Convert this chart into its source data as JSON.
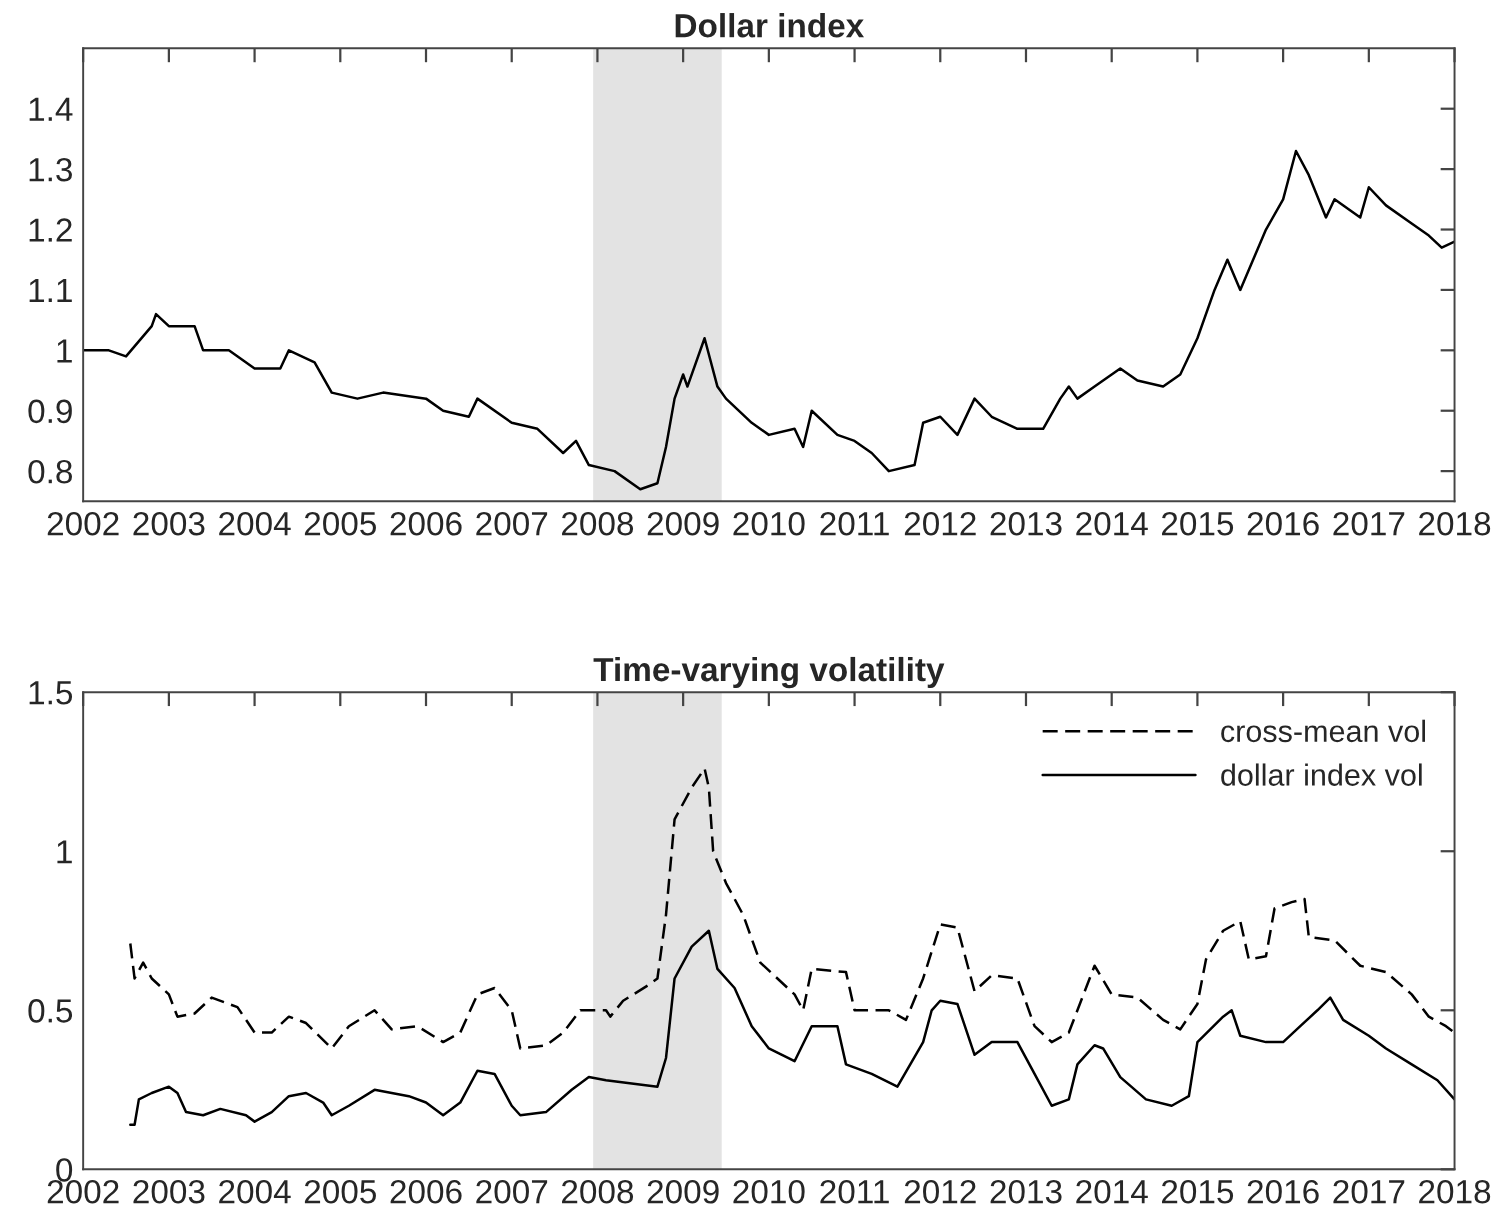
{
  "chart_data": [
    {
      "type": "line",
      "title": "Dollar index",
      "xlim": [
        2002,
        2018
      ],
      "xticks": [
        2002,
        2003,
        2004,
        2005,
        2006,
        2007,
        2008,
        2009,
        2010,
        2011,
        2012,
        2013,
        2014,
        2015,
        2016,
        2017,
        2018
      ],
      "ylim": [
        0.75,
        1.5
      ],
      "yticks": [
        0.8,
        0.9,
        1,
        1.1,
        1.2,
        1.3,
        1.4
      ],
      "grid": false,
      "legend": false,
      "bands": [
        {
          "axis": "x",
          "from": 2007.95,
          "to": 2009.45,
          "color": "#e3e3e3"
        }
      ],
      "series": [
        {
          "color": "#000000",
          "line_style": "solid",
          "x": [
            2002.0,
            2002.3,
            2002.5,
            2002.8,
            2002.85,
            2003.0,
            2003.3,
            2003.4,
            2003.7,
            2004.0,
            2004.3,
            2004.4,
            2004.7,
            2004.9,
            2005.2,
            2005.5,
            2006.0,
            2006.2,
            2006.5,
            2006.6,
            2007.0,
            2007.3,
            2007.6,
            2007.75,
            2007.9,
            2008.2,
            2008.5,
            2008.7,
            2008.8,
            2008.9,
            2009.0,
            2009.05,
            2009.25,
            2009.4,
            2009.5,
            2009.8,
            2010.0,
            2010.3,
            2010.4,
            2010.5,
            2010.8,
            2011.0,
            2011.2,
            2011.4,
            2011.7,
            2011.8,
            2012.0,
            2012.2,
            2012.4,
            2012.6,
            2012.9,
            2013.2,
            2013.4,
            2013.5,
            2013.6,
            2013.8,
            2014.1,
            2014.3,
            2014.6,
            2014.8,
            2015.0,
            2015.2,
            2015.35,
            2015.5,
            2015.8,
            2016.0,
            2016.15,
            2016.3,
            2016.5,
            2016.6,
            2016.9,
            2017.0,
            2017.2,
            2017.5,
            2017.7,
            2017.85,
            2018.0
          ],
          "values": [
            1.0,
            1.0,
            0.99,
            1.04,
            1.06,
            1.04,
            1.04,
            1.0,
            1.0,
            0.97,
            0.97,
            1.0,
            0.98,
            0.93,
            0.92,
            0.93,
            0.92,
            0.9,
            0.89,
            0.92,
            0.88,
            0.87,
            0.83,
            0.85,
            0.81,
            0.8,
            0.77,
            0.78,
            0.84,
            0.92,
            0.96,
            0.94,
            1.02,
            0.94,
            0.92,
            0.88,
            0.86,
            0.87,
            0.84,
            0.9,
            0.86,
            0.85,
            0.83,
            0.8,
            0.81,
            0.88,
            0.89,
            0.86,
            0.92,
            0.89,
            0.87,
            0.87,
            0.92,
            0.94,
            0.92,
            0.94,
            0.97,
            0.95,
            0.94,
            0.96,
            1.02,
            1.1,
            1.15,
            1.1,
            1.2,
            1.25,
            1.33,
            1.29,
            1.22,
            1.25,
            1.22,
            1.27,
            1.24,
            1.21,
            1.19,
            1.17,
            1.18
          ]
        }
      ]
    },
    {
      "type": "line",
      "title": "Time-varying volatility",
      "xlim": [
        2002,
        2018
      ],
      "xticks": [
        2002,
        2003,
        2004,
        2005,
        2006,
        2007,
        2008,
        2009,
        2010,
        2011,
        2012,
        2013,
        2014,
        2015,
        2016,
        2017,
        2018
      ],
      "ylim": [
        0,
        1.5
      ],
      "yticks": [
        0,
        0.5,
        1,
        1.5
      ],
      "grid": false,
      "legend": "top right",
      "bands": [
        {
          "axis": "x",
          "from": 2007.95,
          "to": 2009.45,
          "color": "#e3e3e3"
        }
      ],
      "series": [
        {
          "name": "cross-mean vol",
          "color": "#000000",
          "line_style": "dashed",
          "x": [
            2002.55,
            2002.6,
            2002.7,
            2002.8,
            2003.0,
            2003.1,
            2003.3,
            2003.5,
            2003.8,
            2004.0,
            2004.2,
            2004.4,
            2004.6,
            2004.9,
            2005.1,
            2005.4,
            2005.6,
            2005.9,
            2006.2,
            2006.4,
            2006.6,
            2006.8,
            2007.0,
            2007.1,
            2007.4,
            2007.6,
            2007.8,
            2008.1,
            2008.15,
            2008.3,
            2008.6,
            2008.7,
            2008.8,
            2008.9,
            2009.1,
            2009.25,
            2009.3,
            2009.35,
            2009.5,
            2009.7,
            2009.9,
            2010.3,
            2010.4,
            2010.5,
            2010.9,
            2011.0,
            2011.4,
            2011.6,
            2011.8,
            2012.0,
            2012.2,
            2012.4,
            2012.6,
            2012.9,
            2013.1,
            2013.3,
            2013.5,
            2013.8,
            2014.0,
            2014.3,
            2014.6,
            2014.8,
            2015.0,
            2015.1,
            2015.3,
            2015.5,
            2015.6,
            2015.8,
            2015.9,
            2016.1,
            2016.25,
            2016.3,
            2016.6,
            2016.9,
            2017.2,
            2017.5,
            2017.7,
            2017.9,
            2018.0
          ],
          "values": [
            0.71,
            0.6,
            0.65,
            0.6,
            0.55,
            0.48,
            0.49,
            0.54,
            0.51,
            0.43,
            0.43,
            0.48,
            0.46,
            0.38,
            0.45,
            0.5,
            0.44,
            0.45,
            0.4,
            0.43,
            0.55,
            0.57,
            0.5,
            0.38,
            0.39,
            0.43,
            0.5,
            0.5,
            0.48,
            0.53,
            0.58,
            0.6,
            0.8,
            1.1,
            1.2,
            1.26,
            1.2,
            1.0,
            0.9,
            0.8,
            0.65,
            0.55,
            0.5,
            0.63,
            0.62,
            0.5,
            0.5,
            0.47,
            0.6,
            0.77,
            0.76,
            0.56,
            0.61,
            0.6,
            0.45,
            0.4,
            0.43,
            0.64,
            0.55,
            0.54,
            0.47,
            0.44,
            0.52,
            0.66,
            0.75,
            0.78,
            0.66,
            0.67,
            0.82,
            0.84,
            0.85,
            0.73,
            0.72,
            0.64,
            0.62,
            0.55,
            0.48,
            0.45,
            0.43
          ]
        },
        {
          "name": "dollar index vol",
          "color": "#000000",
          "line_style": "solid",
          "x": [
            2002.55,
            2002.6,
            2002.65,
            2002.8,
            2003.0,
            2003.1,
            2003.2,
            2003.4,
            2003.6,
            2003.9,
            2004.0,
            2004.2,
            2004.4,
            2004.6,
            2004.8,
            2004.9,
            2005.1,
            2005.4,
            2005.8,
            2006.0,
            2006.2,
            2006.4,
            2006.6,
            2006.8,
            2007.0,
            2007.1,
            2007.4,
            2007.7,
            2007.9,
            2008.1,
            2008.4,
            2008.7,
            2008.8,
            2008.9,
            2009.1,
            2009.3,
            2009.4,
            2009.6,
            2009.8,
            2010.0,
            2010.3,
            2010.5,
            2010.8,
            2010.9,
            2011.2,
            2011.5,
            2011.8,
            2011.9,
            2012.0,
            2012.2,
            2012.4,
            2012.6,
            2012.9,
            2013.1,
            2013.3,
            2013.5,
            2013.6,
            2013.8,
            2013.9,
            2014.1,
            2014.4,
            2014.7,
            2014.9,
            2015.0,
            2015.3,
            2015.4,
            2015.5,
            2015.8,
            2016.0,
            2016.2,
            2016.4,
            2016.55,
            2016.7,
            2017.0,
            2017.2,
            2017.5,
            2017.8,
            2018.0
          ],
          "values": [
            0.14,
            0.14,
            0.22,
            0.24,
            0.26,
            0.24,
            0.18,
            0.17,
            0.19,
            0.17,
            0.15,
            0.18,
            0.23,
            0.24,
            0.21,
            0.17,
            0.2,
            0.25,
            0.23,
            0.21,
            0.17,
            0.21,
            0.31,
            0.3,
            0.2,
            0.17,
            0.18,
            0.25,
            0.29,
            0.28,
            0.27,
            0.26,
            0.35,
            0.6,
            0.7,
            0.75,
            0.63,
            0.57,
            0.45,
            0.38,
            0.34,
            0.45,
            0.45,
            0.33,
            0.3,
            0.26,
            0.4,
            0.5,
            0.53,
            0.52,
            0.36,
            0.4,
            0.4,
            0.3,
            0.2,
            0.22,
            0.33,
            0.39,
            0.38,
            0.29,
            0.22,
            0.2,
            0.23,
            0.4,
            0.48,
            0.5,
            0.42,
            0.4,
            0.4,
            0.45,
            0.5,
            0.54,
            0.47,
            0.42,
            0.38,
            0.33,
            0.28,
            0.22
          ]
        }
      ]
    }
  ]
}
